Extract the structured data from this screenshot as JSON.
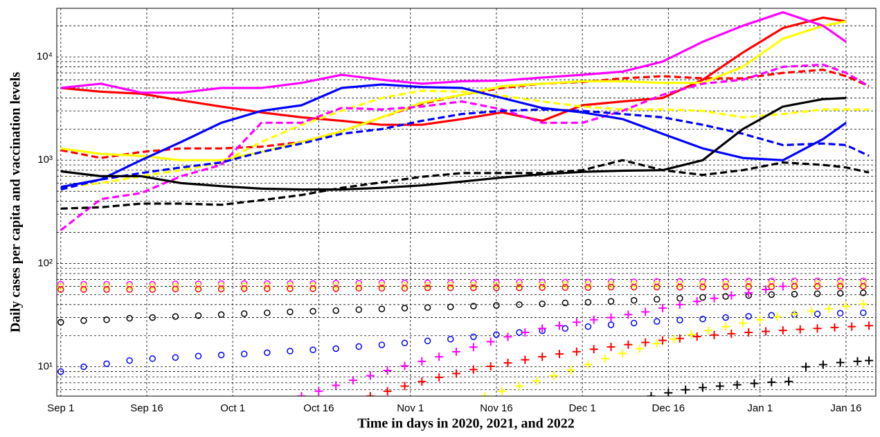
{
  "chart_data": {
    "type": "line",
    "xlabel": "Time in days in 2020, 2021, and 2022",
    "ylabel": "Daily cases per capita and vaccination levels",
    "log_y": true,
    "grid": true,
    "xlim": [
      -0.7,
      142.2
    ],
    "ylim": [
      5.2,
      29500
    ],
    "xticks": [
      {
        "value": 0,
        "label": "Sep 1"
      },
      {
        "value": 15,
        "label": "Sep 16"
      },
      {
        "value": 30,
        "label": "Oct 1"
      },
      {
        "value": 45,
        "label": "Oct 16"
      },
      {
        "value": 61,
        "label": "Nov 1"
      },
      {
        "value": 76,
        "label": "Nov 16"
      },
      {
        "value": 91,
        "label": "Dec 1"
      },
      {
        "value": 106,
        "label": "Dec 16"
      },
      {
        "value": 122,
        "label": "Jan 1"
      },
      {
        "value": 137,
        "label": "Jan 16"
      }
    ],
    "yticks": [
      {
        "value": 10,
        "label": "10¹"
      },
      {
        "value": 100,
        "label": "10²"
      },
      {
        "value": 1000,
        "label": "10³"
      },
      {
        "value": 10000,
        "label": "10⁴"
      }
    ],
    "y_minor_ticks": [
      6,
      7,
      8,
      9,
      20,
      30,
      40,
      50,
      60,
      70,
      80,
      90,
      200,
      300,
      400,
      500,
      600,
      700,
      800,
      900,
      2000,
      3000,
      4000,
      5000,
      6000,
      7000,
      8000,
      9000,
      20000
    ],
    "x": [
      0,
      7,
      14,
      21,
      28,
      35,
      42,
      49,
      56,
      63,
      70,
      77,
      84,
      91,
      98,
      105,
      112,
      119,
      126,
      133,
      137,
      141
    ],
    "series": [
      {
        "color": "#ff0000",
        "line_style": "solid",
        "values": [
          5000,
          4600,
          4400,
          3800,
          3300,
          2900,
          2600,
          2400,
          2200,
          2200,
          2500,
          2900,
          2400,
          3400,
          3700,
          4000,
          6000,
          11000,
          19000,
          24000,
          22000,
          null
        ]
      },
      {
        "color": "#ff0000",
        "line_style": "dashed",
        "values": [
          1250,
          1050,
          1200,
          1300,
          1300,
          1350,
          1500,
          1900,
          2600,
          3500,
          4300,
          5000,
          5500,
          5700,
          6200,
          6500,
          6200,
          6200,
          7000,
          7500,
          6500,
          5200
        ]
      },
      {
        "color": "#ffff00",
        "line_style": "solid",
        "values": [
          1300,
          1150,
          1100,
          1000,
          1000,
          1200,
          1500,
          1900,
          2600,
          3600,
          4300,
          5200,
          5500,
          5800,
          5800,
          5600,
          5600,
          8000,
          15000,
          20000,
          22000,
          null
        ]
      },
      {
        "color": "#ffff00",
        "line_style": "dashed",
        "values": [
          550,
          600,
          700,
          800,
          950,
          1500,
          2200,
          3000,
          4000,
          4700,
          4600,
          4200,
          3700,
          3300,
          3100,
          3100,
          3000,
          2600,
          2800,
          3100,
          3100,
          3100
        ]
      },
      {
        "color": "#ff00ff",
        "line_style": "solid",
        "values": [
          5000,
          5500,
          4500,
          4500,
          5000,
          5000,
          5600,
          6700,
          6000,
          5500,
          5800,
          5900,
          6300,
          6700,
          7200,
          9000,
          14000,
          20000,
          27000,
          20000,
          14000,
          null
        ]
      },
      {
        "color": "#ff00ff",
        "line_style": "dashed",
        "values": [
          210,
          420,
          480,
          700,
          900,
          2300,
          2300,
          3200,
          3100,
          3300,
          3700,
          3100,
          2300,
          2300,
          3000,
          4300,
          5500,
          6000,
          8000,
          8400,
          7000,
          5200
        ]
      },
      {
        "color": "#0000ff",
        "line_style": "solid",
        "values": [
          550,
          650,
          1000,
          1500,
          2300,
          3000,
          3400,
          5000,
          5400,
          5100,
          5000,
          4000,
          3200,
          2900,
          2500,
          1800,
          1300,
          1050,
          1000,
          1600,
          2300,
          null
        ]
      },
      {
        "color": "#0000ff",
        "line_style": "dashed",
        "values": [
          520,
          650,
          750,
          850,
          950,
          1200,
          1450,
          1800,
          2000,
          2400,
          2800,
          3000,
          3100,
          3000,
          2800,
          2600,
          2200,
          1800,
          1400,
          1450,
          1400,
          1100
        ]
      },
      {
        "color": "#000000",
        "line_style": "solid",
        "values": [
          780,
          700,
          700,
          600,
          560,
          530,
          520,
          520,
          540,
          570,
          620,
          680,
          730,
          770,
          790,
          800,
          1000,
          2000,
          3300,
          3900,
          4000,
          null
        ]
      },
      {
        "color": "#000000",
        "line_style": "dashed",
        "values": [
          340,
          350,
          380,
          380,
          370,
          410,
          460,
          540,
          610,
          690,
          750,
          750,
          750,
          800,
          1000,
          800,
          720,
          800,
          950,
          900,
          850,
          760
        ]
      },
      {
        "color": "#ff00ff",
        "marker": "o",
        "x": [
          0,
          4,
          8,
          12,
          16,
          20,
          24,
          28,
          32,
          36,
          40,
          44,
          48,
          52,
          56,
          60,
          64,
          68,
          72,
          76,
          80,
          84,
          88,
          92,
          96,
          100,
          104,
          108,
          112,
          116,
          120,
          124,
          128,
          132,
          136,
          140
        ],
        "values": [
          63,
          63,
          63,
          63,
          63,
          63.5,
          63.5,
          64,
          64,
          64,
          64,
          64,
          64.5,
          64.5,
          65,
          65,
          65,
          65,
          65.5,
          65.5,
          66,
          66,
          66,
          66,
          66.5,
          66.5,
          67,
          67,
          67,
          67,
          67.5,
          67.5,
          68,
          68,
          68,
          68
        ]
      },
      {
        "color": "#ffff00",
        "marker": "o",
        "x": [
          0,
          4,
          8,
          12,
          16,
          20,
          24,
          28,
          32,
          36,
          40,
          44,
          48,
          52,
          56,
          60,
          64,
          68,
          72,
          76,
          80,
          84,
          88,
          92,
          96,
          100,
          104,
          108,
          112,
          116,
          120,
          124,
          128,
          132,
          136,
          140
        ],
        "values": [
          60,
          60,
          60,
          60,
          60,
          60,
          60.5,
          60.5,
          60.5,
          61,
          61,
          61,
          61,
          61,
          61.5,
          61.5,
          61.5,
          62,
          62,
          62,
          62,
          62,
          62.5,
          62.5,
          62.5,
          63,
          63,
          63,
          63,
          63,
          63.5,
          63.5,
          63.5,
          64,
          64,
          64
        ]
      },
      {
        "color": "#ff0000",
        "marker": "o",
        "x": [
          0,
          4,
          8,
          12,
          16,
          20,
          24,
          28,
          32,
          36,
          40,
          44,
          48,
          52,
          56,
          60,
          64,
          68,
          72,
          76,
          80,
          84,
          88,
          92,
          96,
          100,
          104,
          108,
          112,
          116,
          120,
          124,
          128,
          132,
          136,
          140
        ],
        "values": [
          56,
          56,
          56,
          56,
          56,
          56.5,
          56.5,
          56.5,
          57,
          57,
          57,
          57,
          57,
          57.5,
          57.5,
          57.5,
          58,
          58,
          58,
          58,
          58,
          58.5,
          58.5,
          58.5,
          59,
          59,
          59,
          59,
          59,
          59.5,
          59.5,
          59.5,
          60,
          60,
          60,
          60
        ]
      },
      {
        "color": "#000000",
        "marker": "o",
        "x": [
          0,
          4,
          8,
          12,
          16,
          20,
          24,
          28,
          32,
          36,
          40,
          44,
          48,
          52,
          56,
          60,
          64,
          68,
          72,
          76,
          80,
          84,
          88,
          92,
          96,
          100,
          104,
          108,
          112,
          116,
          120,
          124,
          128,
          132,
          136,
          140
        ],
        "values": [
          27,
          28,
          28.5,
          29.5,
          30,
          30.7,
          31.3,
          32,
          32.7,
          33.3,
          34,
          34.5,
          35,
          35.7,
          36.3,
          37,
          37.5,
          38,
          38.7,
          39.3,
          40,
          40.7,
          41.5,
          42.2,
          43,
          44,
          45,
          46,
          47,
          48,
          49,
          50,
          50.5,
          51,
          51.5,
          52
        ]
      },
      {
        "color": "#0000ff",
        "marker": "o",
        "x": [
          0,
          4,
          8,
          12,
          16,
          20,
          24,
          28,
          32,
          36,
          40,
          44,
          48,
          52,
          56,
          60,
          64,
          68,
          72,
          76,
          80,
          84,
          88,
          92,
          96,
          100,
          104,
          108,
          112,
          116,
          120,
          124,
          128,
          132,
          136,
          140
        ],
        "values": [
          9,
          10,
          10.7,
          11.5,
          12,
          12.3,
          12.7,
          13,
          13.3,
          13.7,
          14.2,
          14.6,
          15,
          15.7,
          16.3,
          17,
          17.8,
          18.5,
          19.5,
          20.5,
          21.5,
          22.3,
          23.5,
          24.5,
          25.5,
          26.5,
          27.5,
          28.3,
          29,
          30,
          30.8,
          31.5,
          32,
          32.5,
          33,
          33.3
        ]
      },
      {
        "color": "#ff00ff",
        "marker": "+",
        "x": [
          42,
          45,
          48,
          51,
          54,
          57,
          60,
          63,
          66,
          69,
          72,
          75,
          78,
          81,
          84,
          87,
          90,
          93,
          96,
          99,
          102,
          105,
          108,
          111,
          114,
          117,
          120,
          123,
          126
        ],
        "values": [
          5.2,
          5.8,
          6.6,
          7.4,
          8.2,
          9.2,
          10.2,
          11.3,
          12.5,
          14,
          15.5,
          17.5,
          19.5,
          21.5,
          23.5,
          25,
          27,
          28.5,
          30,
          32,
          34,
          37,
          40,
          43,
          46,
          49,
          52,
          56,
          60
        ]
      },
      {
        "color": "#ff0000",
        "marker": "+",
        "x": [
          54,
          57,
          60,
          63,
          66,
          69,
          72,
          75,
          78,
          81,
          84,
          87,
          90,
          93,
          96,
          99,
          102,
          105,
          108,
          111,
          114,
          117,
          120,
          123,
          126,
          129,
          132,
          135,
          138,
          141
        ],
        "values": [
          5.2,
          5.8,
          6.5,
          7.2,
          7.9,
          8.6,
          9.4,
          10.1,
          10.9,
          11.7,
          12.5,
          13.3,
          14,
          14.8,
          15.6,
          16.4,
          17.2,
          18,
          18.8,
          19.6,
          20.3,
          20.9,
          21.5,
          22,
          22.5,
          23,
          23.5,
          24,
          24.5,
          25
        ]
      },
      {
        "color": "#ffff00",
        "marker": "+",
        "x": [
          74,
          77,
          80,
          83,
          86,
          89,
          92,
          95,
          98,
          101,
          104,
          107,
          110,
          113,
          116,
          119,
          122,
          125,
          128,
          131,
          134,
          137,
          140
        ],
        "values": [
          5.2,
          5.8,
          6.5,
          7.3,
          8.2,
          9.3,
          10.5,
          12,
          13.5,
          15,
          16.8,
          18.5,
          20.5,
          22.5,
          24.5,
          26.5,
          28.5,
          30.5,
          32.5,
          34.5,
          36.5,
          38.5,
          40.5
        ]
      },
      {
        "color": "#000000",
        "marker": "+",
        "x": [
          103,
          106,
          109,
          112,
          115,
          118,
          121,
          124,
          127,
          130,
          133,
          136,
          139,
          141
        ],
        "values": [
          5.2,
          5.6,
          6,
          6.3,
          6.5,
          6.7,
          6.9,
          7.1,
          7.2,
          10,
          10.5,
          11,
          11.3,
          11.5
        ]
      }
    ]
  }
}
